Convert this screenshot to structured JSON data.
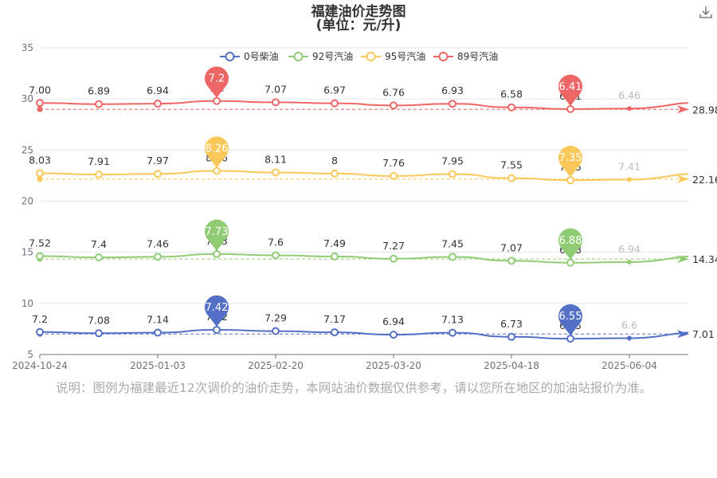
{
  "toolbar": {
    "download_icon": "download-icon"
  },
  "note": "说明：图例为福建最近12次调价的油价走势，本网站油价数据仅供参考，请以您所在地区的加油站报价为准。",
  "chart_data": {
    "type": "line",
    "title": "福建油价走势图",
    "subtitle": "(单位：元/升)",
    "legend_position": "top",
    "ylim": [
      5,
      35
    ],
    "y_ticks": [
      5,
      10,
      15,
      20,
      25,
      30,
      35
    ],
    "x_tick_labels": [
      "2024-10-24",
      "2025-01-03",
      "2025-02-20",
      "2025-03-20",
      "2025-04-18",
      "2025-06-04"
    ],
    "series": [
      {
        "name": "0号柴油",
        "color": "#5470c6",
        "labels": [
          "7.2",
          "7.08",
          "7.14",
          "7.42",
          "7.29",
          "7.17",
          "6.94",
          "7.13",
          "6.73",
          "6.55",
          "6.6"
        ],
        "values": [
          7.2,
          7.08,
          7.14,
          7.42,
          7.29,
          7.17,
          6.94,
          7.13,
          6.73,
          6.55,
          6.6
        ],
        "max_label": "7.42",
        "min_label": "6.55",
        "average": 7.01,
        "average_label": "7.01"
      },
      {
        "name": "92号汽油",
        "color": "#91cc75",
        "labels": [
          "7.52",
          "7.4",
          "7.46",
          "7.73",
          "7.6",
          "7.49",
          "7.27",
          "7.45",
          "7.07",
          "6.88",
          "6.94"
        ],
        "values": [
          7.52,
          7.4,
          7.46,
          7.73,
          7.6,
          7.49,
          7.27,
          7.45,
          7.07,
          6.88,
          6.94
        ],
        "max_label": "7.73",
        "min_label": "6.88",
        "average": 14.34,
        "average_label": "14.34"
      },
      {
        "name": "95号汽油",
        "color": "#fac858",
        "labels": [
          "8.03",
          "7.91",
          "7.97",
          "8.26",
          "8.11",
          "8",
          "7.76",
          "7.95",
          "7.55",
          "7.35",
          "7.41"
        ],
        "values": [
          8.03,
          7.91,
          7.97,
          8.26,
          8.11,
          8.0,
          7.76,
          7.95,
          7.55,
          7.35,
          7.41
        ],
        "max_label": "8.26",
        "min_label": "7.35",
        "average": 22.16,
        "average_label": "22.16"
      },
      {
        "name": "89号汽油",
        "color": "#ee6666",
        "labels": [
          "7.00",
          "6.89",
          "6.94",
          "7.2",
          "7.07",
          "6.97",
          "6.76",
          "6.93",
          "6.58",
          "6.41",
          "6.46"
        ],
        "values": [
          7.0,
          6.89,
          6.94,
          7.2,
          7.07,
          6.97,
          6.76,
          6.93,
          6.58,
          6.41,
          6.46
        ],
        "max_label": "7.2",
        "min_label": "6.41",
        "average": 28.98,
        "average_label": "28.98"
      }
    ]
  }
}
